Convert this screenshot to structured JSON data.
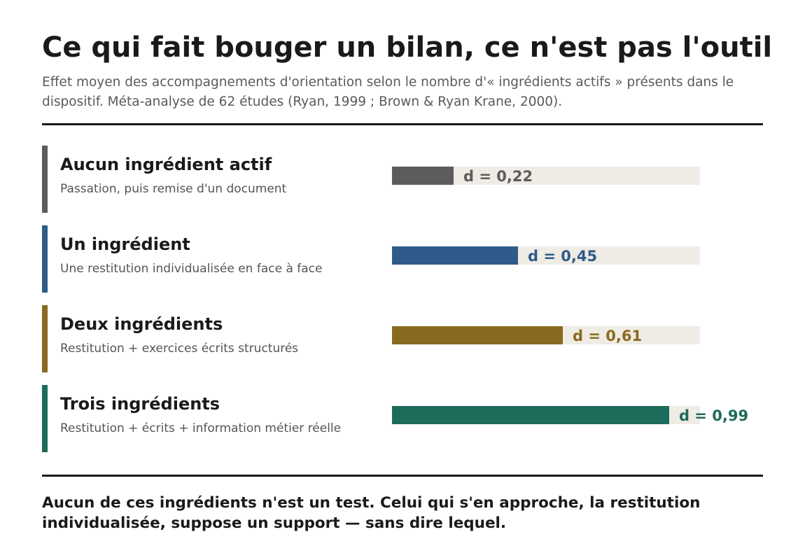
{
  "header": {
    "title": "Ce qui fait bouger un bilan, ce n'est pas l'outil",
    "subtitle": "Effet moyen des accompagnements d'orientation selon le nombre d'« ingrédients actifs » présents dans le dispositif. Méta-analyse de 62 études (Ryan, 1999 ; Brown & Ryan Krane, 2000)."
  },
  "chart_data": {
    "type": "bar",
    "orientation": "horizontal",
    "xlim": [
      0,
      1.1
    ],
    "categories": [
      "Aucun ingrédient actif",
      "Un ingrédient",
      "Deux ingrédients",
      "Trois ingrédients"
    ],
    "values": [
      0.22,
      0.45,
      0.61,
      0.99
    ],
    "rows": [
      {
        "label": "Aucun ingrédient actif",
        "description": "Passation, puis remise d'un document",
        "value": 0.22,
        "value_label": "d = 0,22",
        "color": "#5c5c5c"
      },
      {
        "label": "Un ingrédient",
        "description": "Une restitution individualisée en face à face",
        "value": 0.45,
        "value_label": "d = 0,45",
        "color": "#2e5b8a"
      },
      {
        "label": "Deux ingrédients",
        "description": "Restitution + exercices écrits structurés",
        "value": 0.61,
        "value_label": "d = 0,61",
        "color": "#8a6a1e"
      },
      {
        "label": "Trois ingrédients",
        "description": "Restitution + écrits + information métier réelle",
        "value": 0.99,
        "value_label": "d = 0,99",
        "color": "#1d6b5a"
      }
    ]
  },
  "footer": {
    "note": "Aucun de ces ingrédients n'est un test. Celui qui s'en approche, la restitution individualisée, suppose un support — sans dire lequel."
  }
}
